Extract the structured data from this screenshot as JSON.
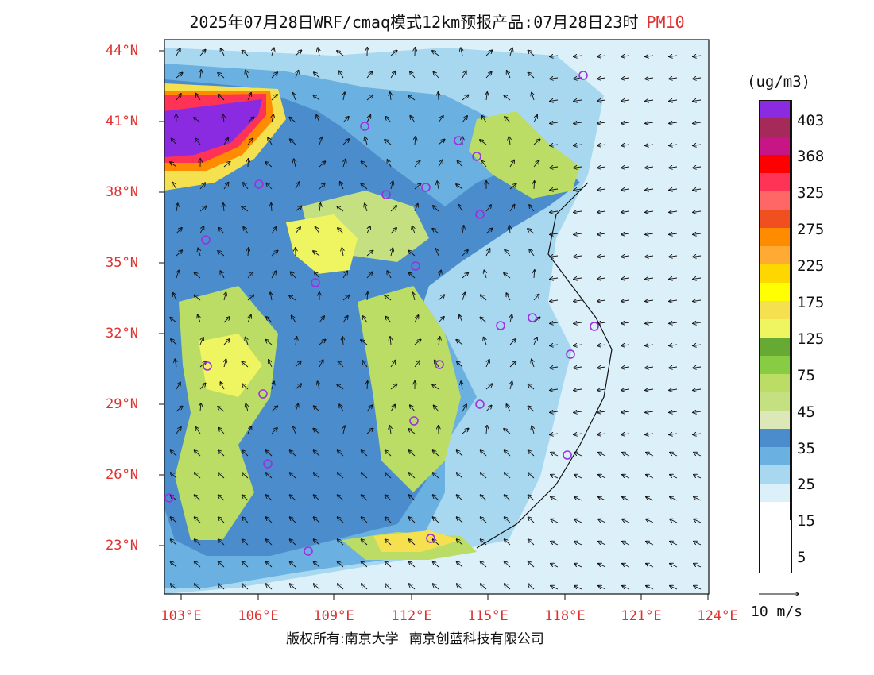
{
  "title": {
    "main": "2025年07月28日WRF/cmaq模式12km预报产品:07月28日23时",
    "field": "PM10"
  },
  "map": {
    "lat_labels": [
      "44°N",
      "41°N",
      "38°N",
      "35°N",
      "32°N",
      "29°N",
      "26°N",
      "23°N"
    ],
    "lon_labels": [
      "103°E",
      "106°E",
      "109°E",
      "112°E",
      "115°E",
      "118°E",
      "121°E",
      "124°E"
    ],
    "station_marker_color": "#9b30e0",
    "label_color": "#e03030"
  },
  "legend": {
    "unit": "(ug/m3)",
    "colors": [
      "#8a2be2",
      "#a52a5a",
      "#c71585",
      "#ff0000",
      "#ff3355",
      "#ff6666",
      "#f05020",
      "#ff8c00",
      "#ffaa33",
      "#ffd700",
      "#ffff00",
      "#f5e050",
      "#eef560",
      "#66aa33",
      "#88cc44",
      "#bbdd66",
      "#c5e080",
      "#dde8b8",
      "#4a8ccc",
      "#6ab0e0",
      "#a8d8f0",
      "#dcf0fa",
      "#ffffff"
    ],
    "labels": [
      "403",
      "368",
      "325",
      "275",
      "225",
      "175",
      "125",
      "75",
      "45",
      "35",
      "25",
      "15",
      "5"
    ]
  },
  "wind_reference": "10 m/s",
  "footer": {
    "left": "版权所有:南京大学",
    "right": "南京创蓝科技有限公司"
  }
}
